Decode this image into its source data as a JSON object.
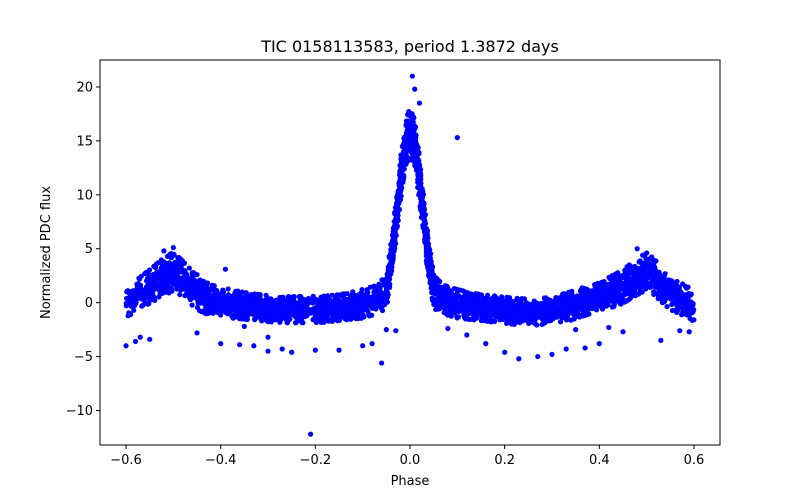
{
  "chart_data": {
    "type": "scatter",
    "title": "TIC 0158113583, period 1.3872 days",
    "xlabel": "Phase",
    "ylabel": "Normalized PDC flux",
    "xlim": [
      -0.655,
      0.655
    ],
    "ylim": [
      -13.2,
      22.5
    ],
    "xticks": [
      -0.6,
      -0.4,
      -0.2,
      0.0,
      0.2,
      0.4,
      0.6
    ],
    "xtick_labels": [
      "−0.6",
      "−0.4",
      "−0.2",
      "0.0",
      "0.2",
      "0.4",
      "0.6"
    ],
    "yticks": [
      -10,
      -5,
      0,
      5,
      10,
      15,
      20
    ],
    "ytick_labels": [
      "−10",
      "−5",
      "0",
      "5",
      "10",
      "15",
      "20"
    ],
    "grid": false,
    "legend": "none",
    "marker_color": "#0000ff",
    "series": [
      {
        "envelope": {
          "phase": [
            -0.6,
            -0.58,
            -0.55,
            -0.52,
            -0.5,
            -0.48,
            -0.45,
            -0.42,
            -0.38,
            -0.34,
            -0.3,
            -0.26,
            -0.22,
            -0.18,
            -0.14,
            -0.1,
            -0.07,
            -0.05,
            -0.035,
            -0.02,
            -0.01,
            0.0,
            0.01,
            0.02,
            0.035,
            0.05,
            0.07,
            0.1,
            0.14,
            0.18,
            0.22,
            0.26,
            0.3,
            0.34,
            0.38,
            0.42,
            0.45,
            0.48,
            0.5,
            0.52,
            0.55,
            0.58,
            0.6
          ],
          "flux_median": [
            -0.3,
            0.6,
            1.5,
            2.4,
            2.9,
            2.2,
            0.9,
            0.2,
            -0.1,
            -0.35,
            -0.55,
            -0.65,
            -0.65,
            -0.6,
            -0.4,
            -0.1,
            0.3,
            1.0,
            5.5,
            11.5,
            14.8,
            15.8,
            14.8,
            11.5,
            5.5,
            1.0,
            0.3,
            -0.1,
            -0.4,
            -0.6,
            -0.8,
            -0.9,
            -0.7,
            -0.3,
            0.3,
            0.9,
            1.5,
            2.4,
            2.9,
            2.2,
            0.9,
            0.2,
            -0.3
          ],
          "flux_spread": [
            1.3,
            1.3,
            1.4,
            1.6,
            1.6,
            1.5,
            1.4,
            1.3,
            1.2,
            1.1,
            1.1,
            1.1,
            1.1,
            1.1,
            1.1,
            1.2,
            1.2,
            1.4,
            1.6,
            1.8,
            1.9,
            2.0,
            1.9,
            1.8,
            1.6,
            1.4,
            1.2,
            1.2,
            1.1,
            1.1,
            1.1,
            1.1,
            1.1,
            1.2,
            1.2,
            1.3,
            1.4,
            1.5,
            1.6,
            1.5,
            1.4,
            1.3,
            1.3
          ],
          "point_count": 4200
        },
        "outliers": {
          "phase": [
            -0.21,
            0.1,
            -0.06,
            -0.39,
            -0.5,
            -0.52,
            -0.55,
            -0.58,
            -0.6,
            -0.57,
            -0.45,
            -0.4,
            -0.36,
            -0.33,
            -0.3,
            -0.27,
            -0.25,
            -0.2,
            -0.15,
            -0.1,
            -0.08,
            -0.05,
            -0.03,
            -0.3,
            0.005,
            0.01,
            0.02,
            0.04,
            0.08,
            0.12,
            0.16,
            0.2,
            0.23,
            0.27,
            0.3,
            0.33,
            0.37,
            0.4,
            0.45,
            0.48,
            0.53,
            0.57,
            0.59,
            -0.45,
            -0.35,
            0.35,
            0.42
          ],
          "flux": [
            -12.2,
            15.3,
            -5.6,
            3.1,
            5.1,
            4.8,
            -3.4,
            -3.6,
            -4.0,
            -3.2,
            -2.8,
            -3.8,
            -3.9,
            -4.0,
            -4.5,
            -4.3,
            -4.6,
            -4.4,
            -4.4,
            -4.0,
            -3.8,
            -2.5,
            -2.6,
            -3.2,
            21.0,
            19.8,
            18.5,
            2.7,
            -2.4,
            -3.0,
            -3.8,
            -4.6,
            -5.2,
            -5.0,
            -4.8,
            -4.3,
            -4.2,
            -3.8,
            -2.7,
            5.0,
            -3.5,
            -2.6,
            -2.7,
            2.6,
            -2.2,
            -2.5,
            -2.3
          ]
        }
      }
    ]
  }
}
